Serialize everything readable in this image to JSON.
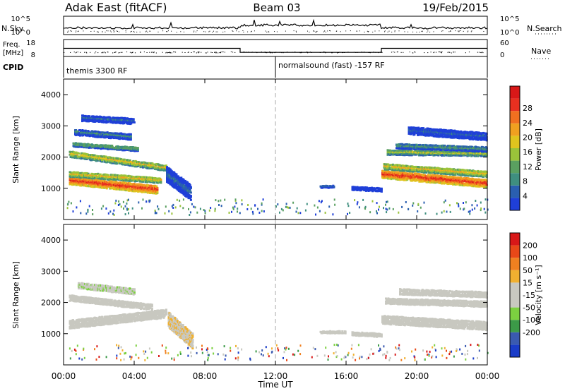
{
  "header": {
    "site": "Adak East (fitACF)",
    "beam": "Beam 03",
    "date": "19/Feb/2015"
  },
  "side_labels": {
    "nsky": "N.Sky",
    "nsearch": "N.Search",
    "freq": "Freq.",
    "freq_unit": "[MHz]",
    "nave": "Nave",
    "cpid": "CPID"
  },
  "noise_axis": {
    "top": "10^5",
    "bottom": "10^0"
  },
  "freq_axis": {
    "left_top": "18",
    "left_bottom": "8",
    "right_top": "60",
    "right_bottom": "0"
  },
  "cpid_labels": [
    "themis 3300 RF",
    "normalsound (fast) -157 RF"
  ],
  "x_ticks": [
    "00:00",
    "04:00",
    "08:00",
    "12:00",
    "16:00",
    "20:00",
    "00:00"
  ],
  "x_label": "Time UT",
  "y_label": "Slant Range [km]",
  "y_ticks": [
    "1000",
    "2000",
    "3000",
    "4000"
  ],
  "power_scale": {
    "label": "Power [dB]",
    "ticks": [
      "4",
      "8",
      "12",
      "16",
      "20",
      "24",
      "28"
    ],
    "colors": [
      "#1f3fd8",
      "#2a5fb0",
      "#3f8f7f",
      "#5aa060",
      "#9ac33a",
      "#e0c41e",
      "#f0a020",
      "#f07020",
      "#e83020",
      "#d81818"
    ]
  },
  "velocity_scale": {
    "label": "Velocity [m s⁻¹]",
    "ticks": [
      "200",
      "100",
      "50",
      "15",
      "-15",
      "-50",
      "-100",
      "-200"
    ],
    "colors": [
      "#1a3cc8",
      "#3a5ab0",
      "#3c9a48",
      "#7cd040",
      "#c8c8c0",
      "#c8c8c0",
      "#f0b030",
      "#f08020",
      "#e84818",
      "#d81818"
    ]
  },
  "chart_data": {
    "type": "heatmap",
    "title": "Adak East (fitACF) Beam 03 19/Feb/2015",
    "xlabel": "Time UT",
    "ylabel": "Slant Range [km]",
    "x_range_hours": [
      0,
      24
    ],
    "y_range_km": [
      0,
      4500
    ],
    "panels": [
      {
        "name": "Power",
        "unit": "dB",
        "color_range": [
          0,
          30
        ],
        "bands": [
          {
            "t0": 0.3,
            "t1": 5.3,
            "r_start": 1300,
            "r_end": 1000,
            "width": 260,
            "value": 26
          },
          {
            "t0": 0.3,
            "t1": 5.5,
            "r_start": 1500,
            "r_end": 1300,
            "width": 180,
            "value": 18
          },
          {
            "t0": 0.3,
            "t1": 5.8,
            "r_start": 2150,
            "r_end": 1700,
            "width": 200,
            "value": 17
          },
          {
            "t0": 0.5,
            "t1": 4.2,
            "r_start": 2450,
            "r_end": 2300,
            "width": 140,
            "value": 13
          },
          {
            "t0": 0.6,
            "t1": 3.8,
            "r_start": 2850,
            "r_end": 2700,
            "width": 200,
            "value": 8
          },
          {
            "t0": 1.0,
            "t1": 4.0,
            "r_start": 3300,
            "r_end": 3200,
            "width": 200,
            "value": 5
          },
          {
            "t0": 5.8,
            "t1": 7.2,
            "r_start": 1500,
            "r_end": 900,
            "width": 500,
            "value": 6
          },
          {
            "t0": 14.5,
            "t1": 15.3,
            "r_start": 1100,
            "r_end": 1100,
            "width": 80,
            "value": 4
          },
          {
            "t0": 16.3,
            "t1": 18.0,
            "r_start": 1050,
            "r_end": 1000,
            "width": 120,
            "value": 4
          },
          {
            "t0": 18.0,
            "t1": 24.0,
            "r_start": 1500,
            "r_end": 1200,
            "width": 260,
            "value": 26
          },
          {
            "t0": 18.1,
            "t1": 24.0,
            "r_start": 1750,
            "r_end": 1500,
            "width": 200,
            "value": 18
          },
          {
            "t0": 18.3,
            "t1": 24.0,
            "r_start": 2200,
            "r_end": 2150,
            "width": 160,
            "value": 15
          },
          {
            "t0": 18.8,
            "t1": 24.0,
            "r_start": 2400,
            "r_end": 2300,
            "width": 160,
            "value": 10
          },
          {
            "t0": 19.5,
            "t1": 24.0,
            "r_start": 2900,
            "r_end": 2700,
            "width": 250,
            "value": 5
          }
        ]
      },
      {
        "name": "Velocity",
        "unit": "m s-1",
        "color_range": [
          -200,
          200
        ],
        "bands": [
          {
            "t0": 0.3,
            "t1": 5.8,
            "r_start": 1350,
            "r_end": 1700,
            "width": 280,
            "value": 0
          },
          {
            "t0": 0.3,
            "t1": 5.0,
            "r_start": 2200,
            "r_end": 1900,
            "width": 200,
            "value": 0
          },
          {
            "t0": 0.8,
            "t1": 4.0,
            "r_start": 2600,
            "r_end": 2400,
            "width": 200,
            "value": -30
          },
          {
            "t0": 5.9,
            "t1": 7.3,
            "r_start": 1500,
            "r_end": 800,
            "width": 500,
            "value": 35
          },
          {
            "t0": 14.5,
            "t1": 16.0,
            "r_start": 1100,
            "r_end": 1100,
            "width": 80,
            "value": 0
          },
          {
            "t0": 16.3,
            "t1": 18.0,
            "r_start": 1050,
            "r_end": 1000,
            "width": 120,
            "value": 0
          },
          {
            "t0": 18.0,
            "t1": 24.0,
            "r_start": 1500,
            "r_end": 1300,
            "width": 280,
            "value": 0
          },
          {
            "t0": 18.2,
            "t1": 24.0,
            "r_start": 2100,
            "r_end": 2000,
            "width": 200,
            "value": 10
          },
          {
            "t0": 19.0,
            "t1": 24.0,
            "r_start": 2400,
            "r_end": 2300,
            "width": 200,
            "value": 0
          }
        ]
      }
    ],
    "frequency_mhz": [
      {
        "t0": 0,
        "t1": 10,
        "value": 12.8
      },
      {
        "t0": 10,
        "t1": 18,
        "value": 10.4
      },
      {
        "t0": 18,
        "t1": 24,
        "value": 12.8
      }
    ],
    "cpid": [
      {
        "t0": 0,
        "t1": 12,
        "label": "themis 3300 RF"
      },
      {
        "t0": 12,
        "t1": 24,
        "label": "normalsound (fast) -157 RF"
      }
    ]
  }
}
